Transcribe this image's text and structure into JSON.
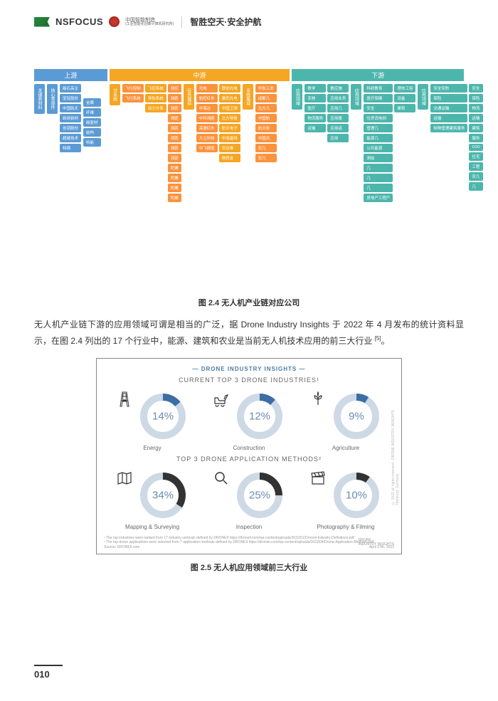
{
  "header": {
    "brand": "NSFOCUS",
    "partner": "中国智能制造",
    "partner_sub": "(工业智能化创新计算机研究所)",
    "slogan": "智胜空天·安全护航"
  },
  "fig1": {
    "caption": "图 2.4   无人机产业链对应公司",
    "sections": {
      "up": "上游",
      "mid": "中游",
      "down": "下游"
    },
    "colors": {
      "blue": "#5b9bd5",
      "orange": "#f5a623",
      "teal": "#4db6ac",
      "orange2": "#fb923c",
      "bg": "#ffffff"
    },
    "up_roots": [
      "关键原材料",
      "核心零部件"
    ],
    "up_items": [
      "碳石高企",
      "宝钛股份",
      "中国航天",
      "新研新材",
      "创调股份",
      "超越技术",
      "特钢"
    ],
    "up_items2": [
      "金属",
      "纤维",
      "碳复材",
      "结构",
      "特能"
    ],
    "mid_roots": [
      "分系统",
      "任务载荷",
      "系统集成"
    ],
    "mid_g1": [
      "飞行控制",
      "飞行系统"
    ],
    "mid_g1_sub": [
      "飞控系统",
      "导航系统",
      "动力分系"
    ],
    "mid_g1_leaf": [
      "测控",
      "测距",
      "测距",
      "测距",
      "测距",
      "测距",
      "测距",
      "测距",
      "陀螺",
      "陀螺",
      "陀螺",
      "陀螺"
    ],
    "mid_g2_head": [
      "光电"
    ],
    "mid_g2": [
      "航控红外",
      "中海达",
      "中科测距",
      "高德红外",
      "大立科技",
      "中飞精密"
    ],
    "mid_g3": [
      "联创光电",
      "暴死光电",
      "中国卫测",
      "北方导航",
      "航天电子",
      "中海基线",
      "安达维",
      "陕西金"
    ],
    "mid_g4": [
      "中航工发",
      "成都几",
      "北方几",
      "中国航",
      "航天彩",
      "中国兵",
      "宏几",
      "宏几"
    ],
    "down_root": "应用领域",
    "down_g1": [
      "数学",
      "农林",
      "医疗",
      "物流服务",
      "运输"
    ],
    "down_g1_sub": [
      "数应施",
      "应用业务",
      "应用几",
      "应用服",
      "应用运",
      "应用"
    ],
    "down_g2": [
      "科研教育",
      "医疗保健",
      "安全",
      "住房消电网",
      "管理几",
      "能源几",
      "公共能源",
      "测绘",
      "几",
      "几",
      "几",
      "房地产工程产"
    ],
    "down_g2_sub": [
      "理技工培",
      "设备",
      "建筑"
    ],
    "down_g3": [
      "安全安防",
      "保险",
      "交通运输",
      "运输",
      "制物管理建筑服务"
    ],
    "down_g3_sub": [
      "安全",
      "保险",
      "物流",
      "运输",
      "建筑",
      "服务",
      "O2O",
      "住宅",
      "工程",
      "农几",
      "几"
    ]
  },
  "para": {
    "text": "无人机产业链下游的应用领域可谓是相当的广泛，据 Drone Industry Insights 于 2022 年 4 月发布的统计资料显示，在图 2.4 列出的 17 个行业中，能源、建筑和农业是当前无人机技术应用的前三大行业 ",
    "ref": "[5]"
  },
  "fig2": {
    "brand": "DRONE INDUSTRY INSIGHTS",
    "title1": "CURRENT TOP 3 DRONE INDUSTRIES¹",
    "title2": "TOP 3 DRONE APPLICATION METHODS²",
    "caption": "图 2.5   无人机应用领域前三大行业",
    "row1": [
      {
        "pct": 14,
        "label": "Energy",
        "icon": "pylon",
        "color": "#3b6ea5",
        "track": "#cdd9e5"
      },
      {
        "pct": 12,
        "label": "Construction",
        "icon": "excavator",
        "color": "#3b6ea5",
        "track": "#cdd9e5"
      },
      {
        "pct": 9,
        "label": "Agriculture",
        "icon": "plant",
        "color": "#3b6ea5",
        "track": "#cdd9e5"
      }
    ],
    "row2": [
      {
        "pct": 34,
        "label": "Mapping & Surveying",
        "icon": "map",
        "color": "#333333",
        "track": "#cdd9e5"
      },
      {
        "pct": 25,
        "label": "Inspection",
        "icon": "magnify",
        "color": "#333333",
        "track": "#cdd9e5"
      },
      {
        "pct": 10,
        "label": "Photography & Filming",
        "icon": "clapper",
        "color": "#333333",
        "track": "#cdd9e5"
      }
    ],
    "donut_stroke": 11,
    "donut_r": 30,
    "footer": "¹ The top industries were ranked from 17 industry verticals defined by DRONEII https://droneii.com/wp-content/uploads/2022/01/Droneii-Industry-Definitions.pdf\n² The top drone applications were selected from 7 application methods defined by DRONEII https://droneii.com/wp-content/uploads/2022/04/Drone-Application-Methods.pdf\nSource: DRONEII.com",
    "date": "April 27th, 2022",
    "side": "© 2022 all rights reserved · DRONE INDUSTRY INSIGHTS · Hamburg, Germany",
    "logo": "DRONE",
    "logo_sub": "INDUSTRY INSIGHTS"
  },
  "page": "010"
}
